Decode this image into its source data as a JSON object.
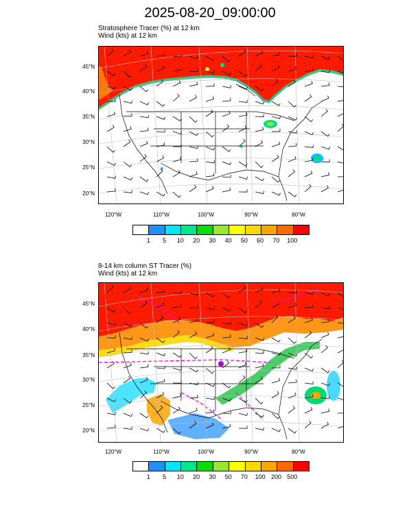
{
  "title": "2025-08-20_09:00:00",
  "panels": [
    {
      "line1": "Stratosphere Tracer   (%)     at   12 km",
      "line2": "Wind   (kts)     at   12 km",
      "lat_labels": [
        "45°N",
        "40°N",
        "35°N",
        "30°N",
        "25°N",
        "20°N"
      ],
      "lon_labels": [
        "120°W",
        "110°W",
        "100°W",
        "90°W",
        "80°W"
      ],
      "colorbar": {
        "labels": [
          "1",
          "5",
          "10",
          "20",
          "30",
          "40",
          "50",
          "60",
          "70",
          "100"
        ],
        "colors": [
          "#ffffff",
          "#1e90ff",
          "#00e5ff",
          "#00e68c",
          "#00dd00",
          "#96e632",
          "#ffff00",
          "#ffd700",
          "#ffa500",
          "#ff6a00",
          "#ff0000"
        ]
      }
    },
    {
      "line1": "8-14 km column ST Tracer   (%)",
      "line2": "Wind   (kts)     at   12 km",
      "lat_labels": [
        "45°N",
        "40°N",
        "35°N",
        "30°N",
        "25°N",
        "20°N"
      ],
      "lon_labels": [
        "120°W",
        "110°W",
        "100°W",
        "90°W",
        "80°W"
      ],
      "colorbar": {
        "labels": [
          "1",
          "5",
          "10",
          "20",
          "30",
          "50",
          "70",
          "100",
          "200",
          "500"
        ],
        "colors": [
          "#ffffff",
          "#1e90ff",
          "#00e5ff",
          "#00e68c",
          "#00dd00",
          "#96e632",
          "#ffff00",
          "#ffd700",
          "#ffa500",
          "#ff6a00",
          "#ff0000"
        ]
      }
    }
  ]
}
